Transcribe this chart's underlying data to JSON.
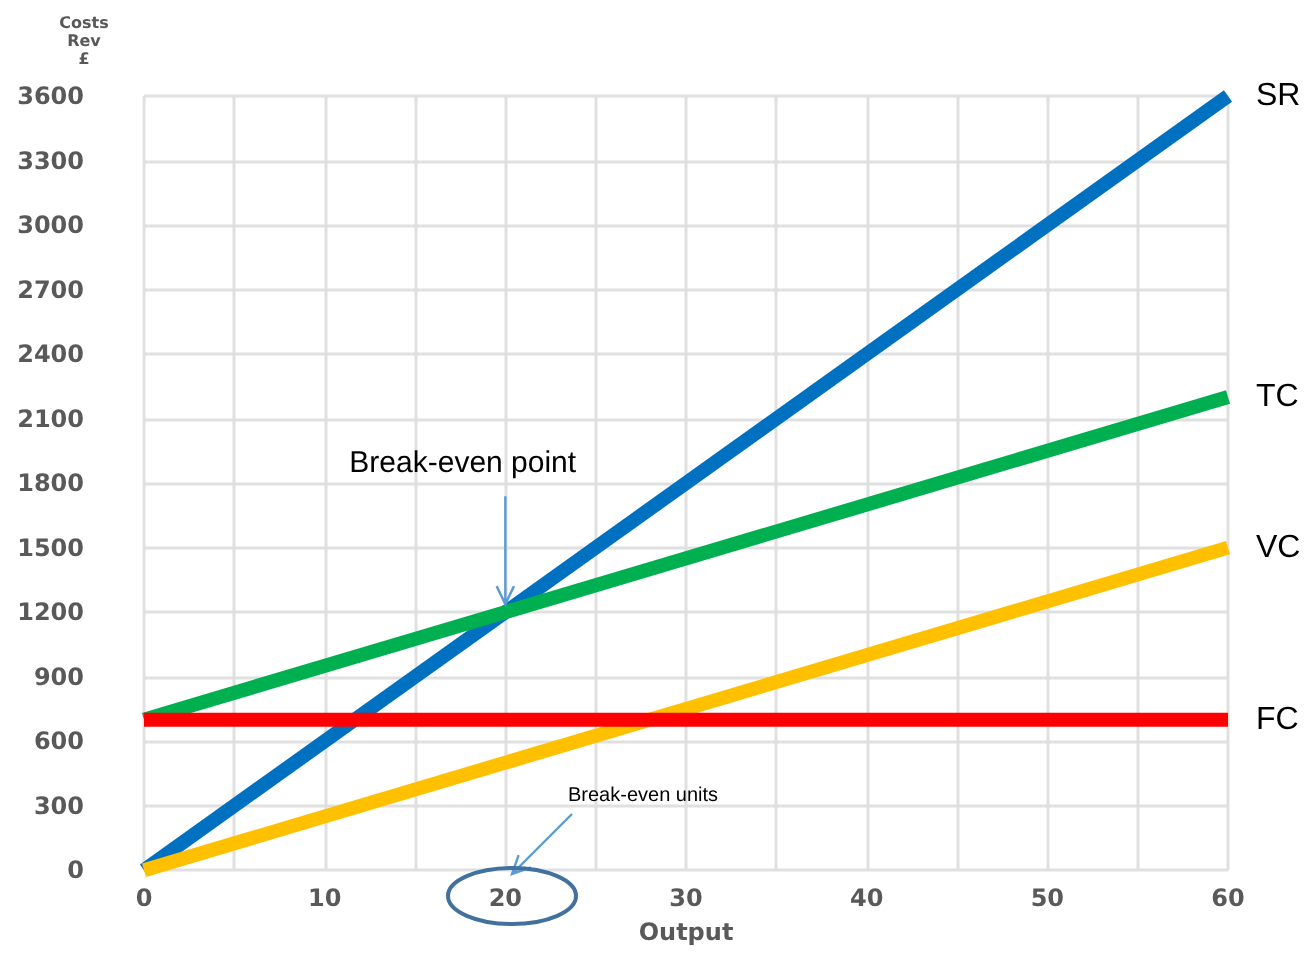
{
  "chart_data": {
    "type": "line",
    "ylabel": "Costs\nRev\n£",
    "xlabel": "Output",
    "x": [
      0,
      60
    ],
    "series": [
      {
        "name": "SR",
        "color": "#0070c0",
        "values": [
          0,
          3600
        ]
      },
      {
        "name": "TC",
        "color": "#00b050",
        "values": [
          700,
          2200
        ]
      },
      {
        "name": "VC",
        "color": "#ffc000",
        "values": [
          0,
          1500
        ]
      },
      {
        "name": "FC",
        "color": "#ff0000",
        "values": [
          700,
          700
        ]
      }
    ],
    "xlim": [
      0,
      60
    ],
    "xticks": [
      0,
      {
        "value": 5,
        "label": null
      },
      10,
      {
        "value": 15,
        "label": null
      },
      20,
      {
        "value": 25,
        "label": null
      },
      30,
      {
        "value": 35,
        "label": null
      },
      40,
      {
        "value": 45,
        "label": null
      },
      50,
      {
        "value": 55,
        "label": null
      },
      60
    ],
    "ylim": [
      0,
      3600
    ],
    "yticks": [
      0,
      300,
      600,
      900,
      1200,
      1500,
      1800,
      2100,
      2400,
      2700,
      3000,
      3300,
      3600
    ],
    "annotations": [
      {
        "text": "Break-even point",
        "x": 20,
        "y": 1200
      },
      "Break-even units"
    ],
    "grid": true,
    "legend": false,
    "marker": "none",
    "line_style": "solid"
  }
}
